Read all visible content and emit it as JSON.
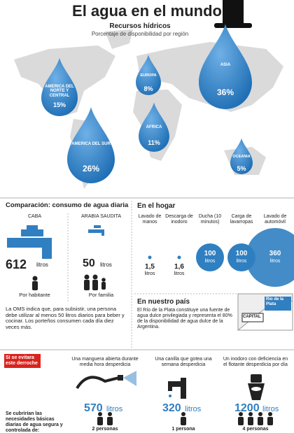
{
  "header": {
    "title": "El agua en el mundo",
    "subtitle": "Recursos hídricos",
    "caption": "Porcentaje de disponibilidad por región"
  },
  "regions": [
    {
      "name": "AMERICA DEL NORTE Y CENTRAL",
      "value": "15%"
    },
    {
      "name": "EUROPA",
      "value": "8%"
    },
    {
      "name": "ASIA",
      "value": "36%"
    },
    {
      "name": "AFRICA",
      "value": "11%"
    },
    {
      "name": "AMERICA DEL SUR",
      "value": "26%"
    },
    {
      "name": "OCEANIA",
      "value": "5%"
    }
  ],
  "comparison": {
    "title": "Comparación: consumo de agua diaria",
    "columns": [
      {
        "place": "CABA",
        "amount": "612",
        "unit": "litros",
        "basis": "Por habitante"
      },
      {
        "place": "ARABIA SAUDITA",
        "amount": "50",
        "unit": "litros",
        "basis": "Por familia"
      }
    ],
    "note": "La OMS indica que, para subsistir, una persona debe utilizar al menos 50 litros diarios para beber y cocinar. Los porteños consumen cada día diez veces más."
  },
  "home": {
    "title": "En el hogar",
    "items": [
      {
        "label": "Lavado de manos",
        "amount": "1,5",
        "unit": "litros"
      },
      {
        "label": "Descarga de inodoro",
        "amount": "1,6",
        "unit": "litros"
      },
      {
        "label": "Ducha (10 minutos)",
        "amount": "100",
        "unit": "litros"
      },
      {
        "label": "Carga de lavarropas",
        "amount": "100",
        "unit": "litros"
      },
      {
        "label": "Lavado de automóvil",
        "amount": "360",
        "unit": "litros"
      }
    ]
  },
  "country": {
    "title": "En nuestro país",
    "text": "El Río de la Plata constituye una fuente de agua dulce privilegiada y representa el 80% de la disponibilidad de agua dulce de la Argentina.",
    "map_labels": [
      "CAPITAL",
      "Río de la Plata"
    ]
  },
  "waste": {
    "title": "Si se evitara este derroche",
    "items": [
      {
        "description": "Una manguera abierta durante media hora desperdicia",
        "amount": "570",
        "unit": "litros",
        "people": "2 personas"
      },
      {
        "description": "Una canilla que gotea una semana desperdicia",
        "amount": "320",
        "unit": "litros",
        "people": "1 persona"
      },
      {
        "description": "Un inodoro con deficiencia en el flotante desperdicia por día",
        "amount": "1200",
        "unit": "litros",
        "people": "4 personas"
      }
    ],
    "footer": "Se cubrirían las necesidades básicas diarias de agua segura y controlada de:"
  }
}
